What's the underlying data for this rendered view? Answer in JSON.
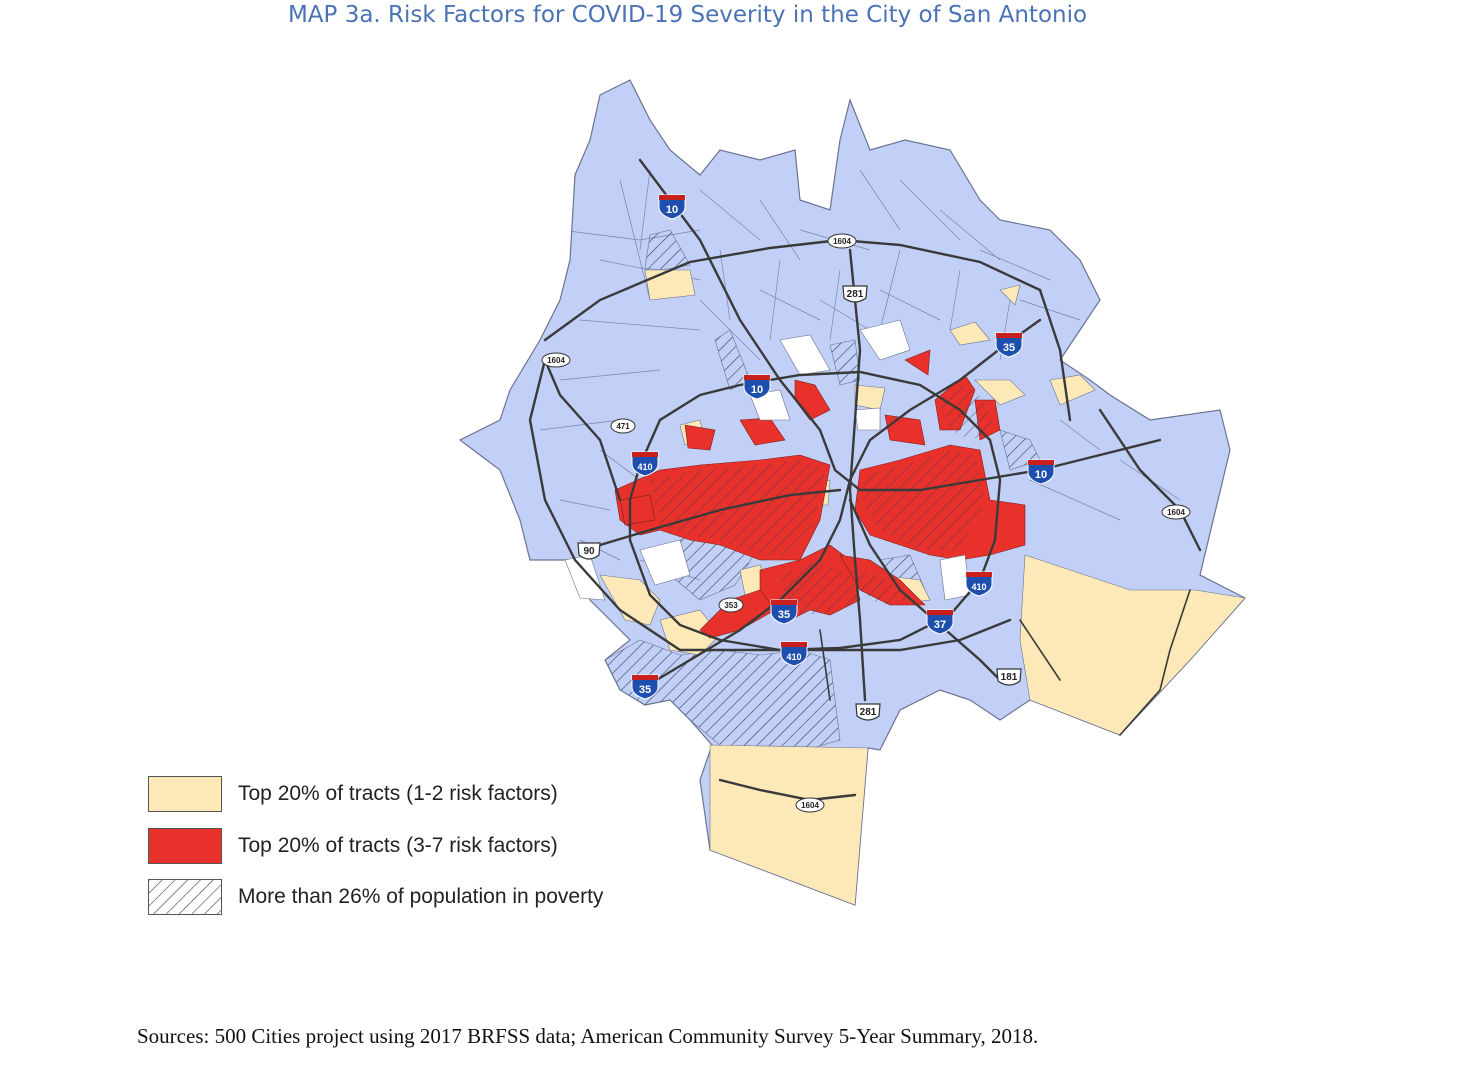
{
  "title": "MAP 3a. Risk Factors for COVID-19 Severity in the City of San Antonio",
  "sources": "Sources: 500 Cities project using 2017 BRFSS data; American Community Survey 5-Year Summary, 2018.",
  "colors": {
    "base": "#c2d0f7",
    "top20_low": "#fde8b8",
    "top20_high": "#e8312a",
    "tract_border": "#6a7390",
    "highway": "#3a3a3a"
  },
  "legend": [
    {
      "id": "low",
      "label": "Top 20% of tracts (1-2 risk factors)",
      "fill": "#fde8b8",
      "hatched": false
    },
    {
      "id": "high",
      "label": "Top 20% of tracts (3-7 risk factors)",
      "fill": "#e8312a",
      "hatched": false
    },
    {
      "id": "poverty",
      "label": "More than 26% of population in poverty",
      "fill": "#ffffff",
      "hatched": true
    }
  ],
  "shields": {
    "i10_north": "10",
    "i10_mid": "10",
    "i10_east": "10",
    "i35_north": "35",
    "i35_south": "35",
    "i35_mid": "35",
    "i410_west": "410",
    "i410_east": "410",
    "i410_south": "410",
    "i37": "37",
    "s1604_north": "1604",
    "s1604_west": "1604",
    "s1604_east": "1604",
    "s1604_south": "1604",
    "s281_north": "281",
    "s281_south": "281",
    "s471": "471",
    "s90": "90",
    "s353": "353",
    "s181": "181"
  }
}
